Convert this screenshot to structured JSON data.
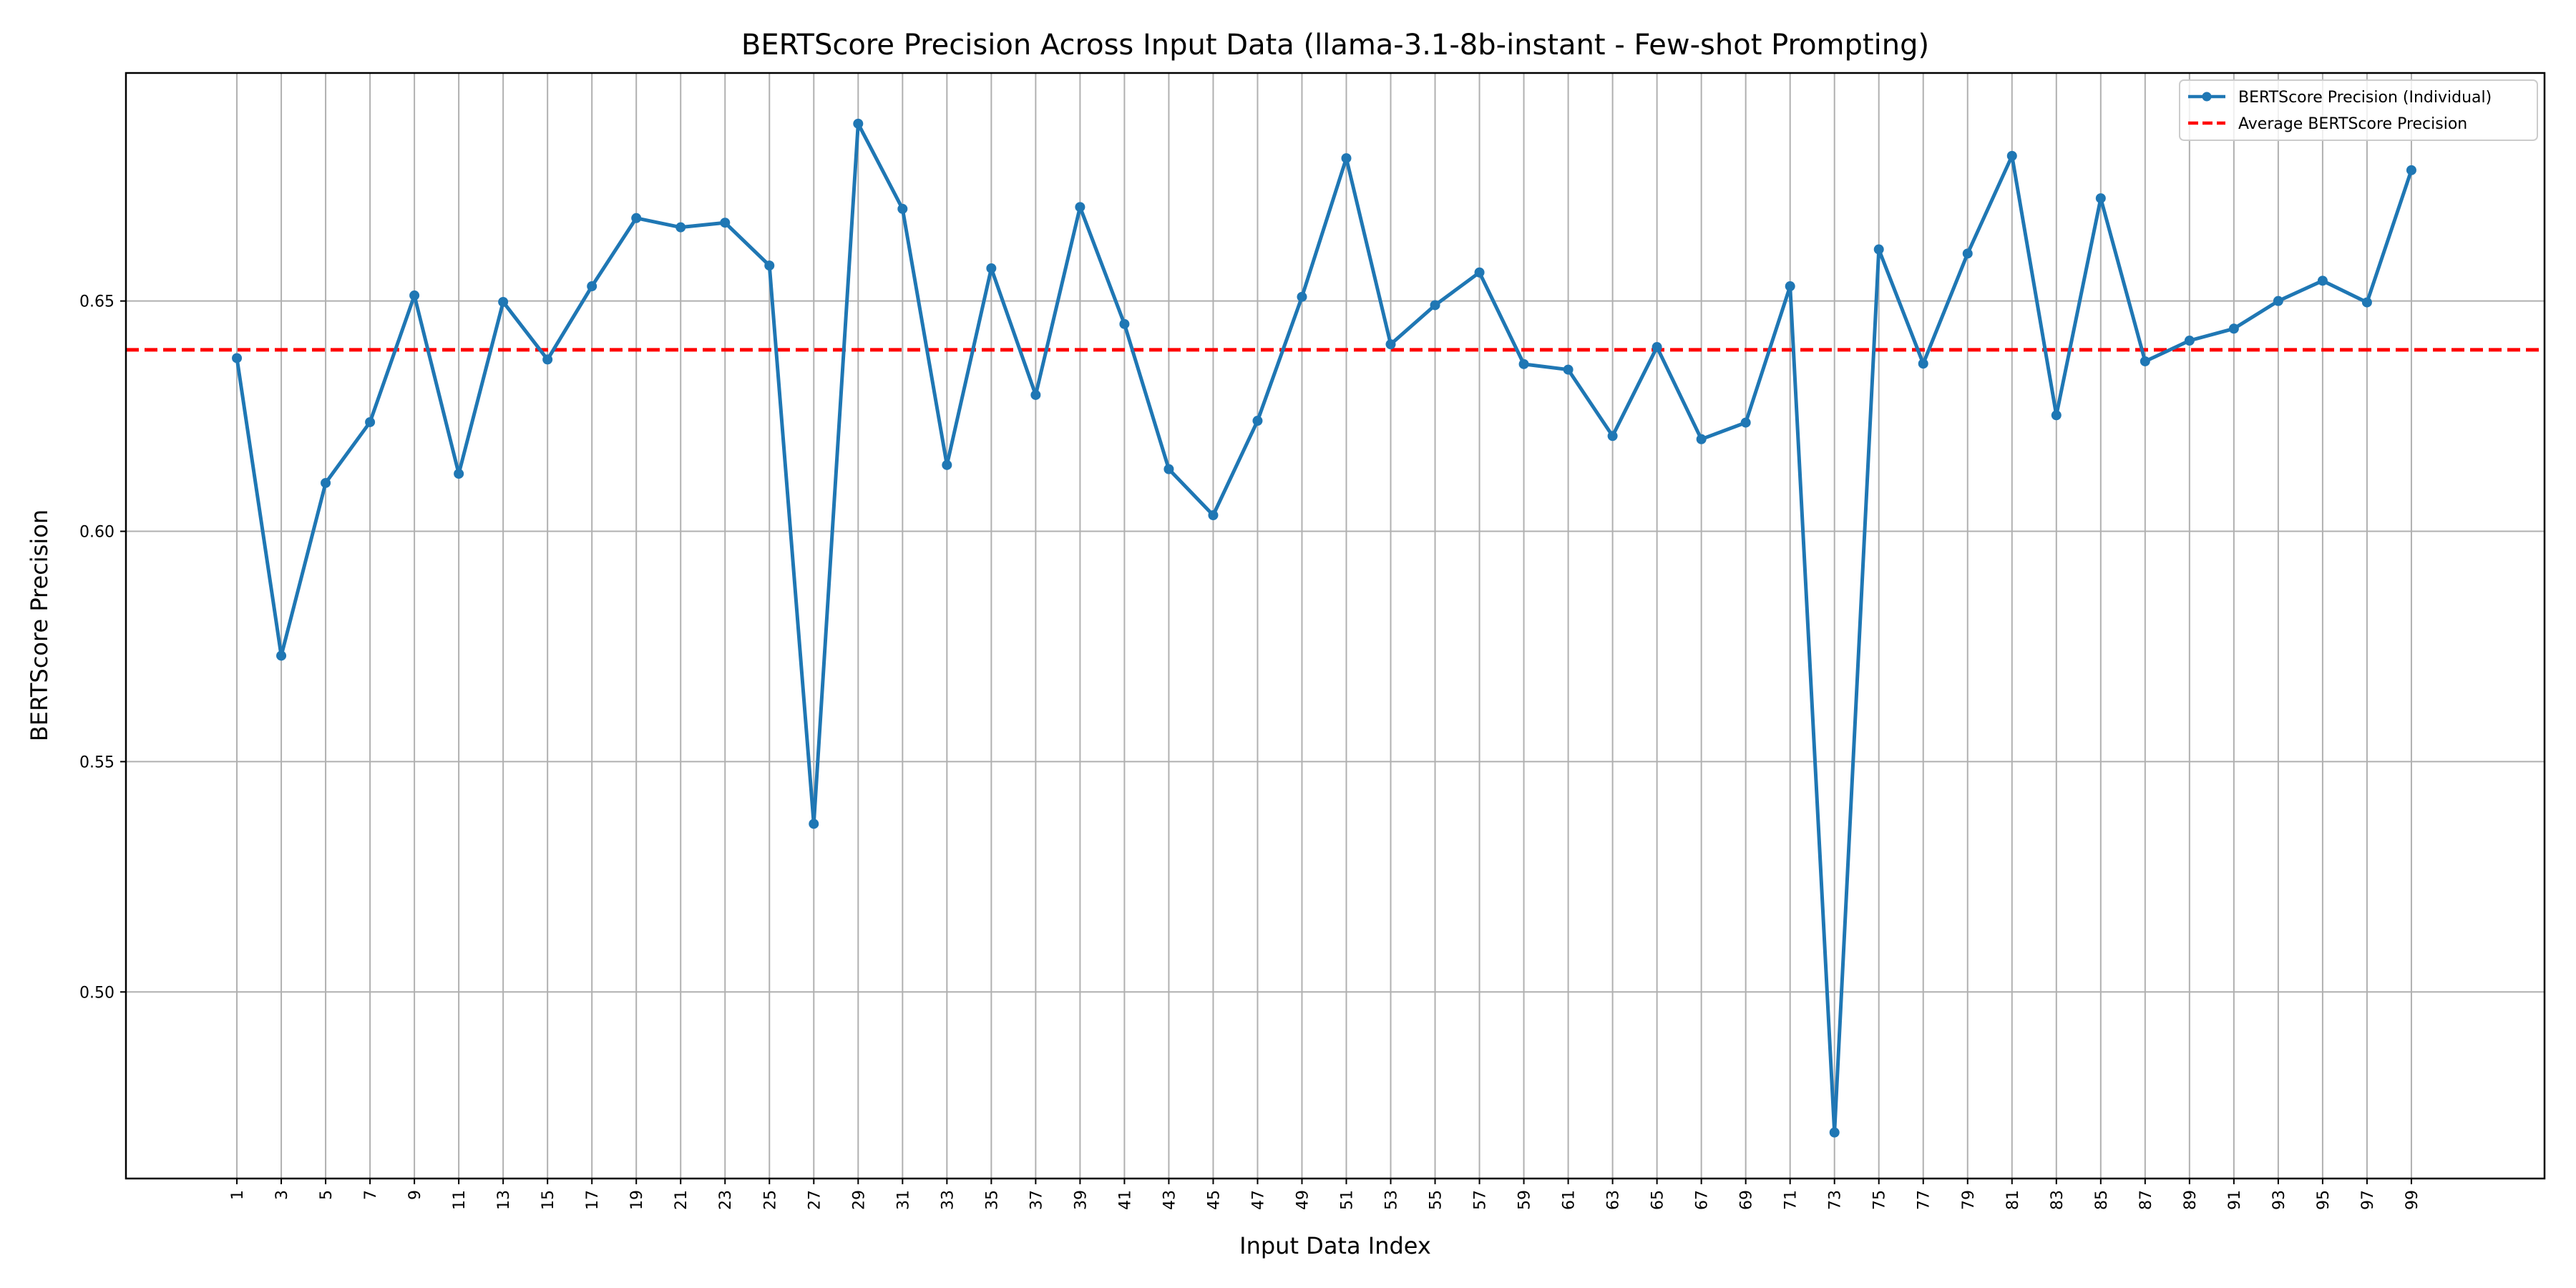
{
  "chart_data": {
    "type": "line",
    "title": "BERTScore Precision Across Input Data (llama-3.1-8b-instant - Few-shot Prompting)",
    "xlabel": "Input Data Index",
    "ylabel": "BERTScore Precision",
    "x": [
      1,
      3,
      5,
      7,
      9,
      11,
      13,
      15,
      17,
      19,
      21,
      23,
      25,
      27,
      29,
      31,
      33,
      35,
      37,
      39,
      41,
      43,
      45,
      47,
      49,
      51,
      53,
      55,
      57,
      59,
      61,
      63,
      65,
      67,
      69,
      71,
      73,
      75,
      77,
      79,
      81,
      83,
      85,
      87,
      89,
      91,
      93,
      95,
      97,
      99
    ],
    "xticks": [
      "1",
      "3",
      "5",
      "7",
      "9",
      "11",
      "13",
      "15",
      "17",
      "19",
      "21",
      "23",
      "25",
      "27",
      "29",
      "31",
      "33",
      "35",
      "37",
      "39",
      "41",
      "43",
      "45",
      "47",
      "49",
      "51",
      "53",
      "55",
      "57",
      "59",
      "61",
      "63",
      "65",
      "67",
      "69",
      "71",
      "73",
      "75",
      "77",
      "79",
      "81",
      "83",
      "85",
      "87",
      "89",
      "91",
      "93",
      "95",
      "97",
      "99"
    ],
    "xlim": [
      -4,
      105
    ],
    "ylim": [
      0.4595,
      0.6995
    ],
    "yticks": [
      0.5,
      0.55,
      0.6,
      0.65
    ],
    "ytick_labels": [
      "0.50",
      "0.55",
      "0.60",
      "0.65"
    ],
    "grid": true,
    "legend_position": "upper right",
    "series": [
      {
        "name": "BERTScore Precision (Individual)",
        "color": "#1f77b4",
        "style": "solid-with-markers",
        "values": [
          0.6376,
          0.573,
          0.6105,
          0.6237,
          0.6512,
          0.6125,
          0.6498,
          0.6373,
          0.6532,
          0.668,
          0.666,
          0.667,
          0.6577,
          0.5365,
          0.6885,
          0.67,
          0.6144,
          0.6571,
          0.6296,
          0.6704,
          0.645,
          0.6135,
          0.6035,
          0.624,
          0.6509,
          0.681,
          0.6406,
          0.6491,
          0.6562,
          0.6363,
          0.6351,
          0.6207,
          0.64,
          0.62,
          0.6236,
          0.6532,
          0.4695,
          0.6612,
          0.6364,
          0.6603,
          0.6815,
          0.6252,
          0.6723,
          0.6369,
          0.6414,
          0.644,
          0.65,
          0.6544,
          0.6497,
          0.6784
        ]
      },
      {
        "name": "Average BERTScore Precision",
        "color": "#ff0000",
        "style": "dashed",
        "value": 0.6394
      }
    ]
  }
}
